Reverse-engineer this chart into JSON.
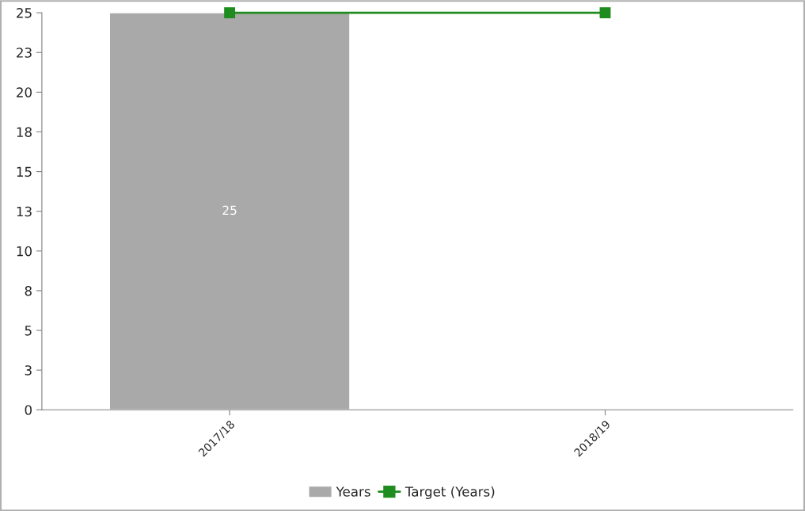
{
  "chart_data": {
    "type": "bar",
    "categories": [
      "2017/18",
      "2018/19"
    ],
    "series": [
      {
        "name": "Years",
        "color": "#a9a9a9",
        "values": [
          25,
          null
        ],
        "value_labels": [
          "25",
          null
        ]
      },
      {
        "name": "Target (Years)",
        "type": "line",
        "color": "#1e8c1e",
        "values": [
          25,
          25
        ],
        "marker": "square",
        "line_style": "solid"
      }
    ],
    "ylim": [
      0,
      25
    ],
    "yticks": [
      0,
      {
        "value": 2.5,
        "label": "3"
      },
      5,
      {
        "value": 7.5,
        "label": "8"
      },
      10,
      {
        "value": 12.5,
        "label": "13"
      },
      15,
      {
        "value": 17.5,
        "label": "18"
      },
      20,
      {
        "value": 22.5,
        "label": "23"
      },
      25
    ],
    "grid": false,
    "legend": "bottom"
  }
}
